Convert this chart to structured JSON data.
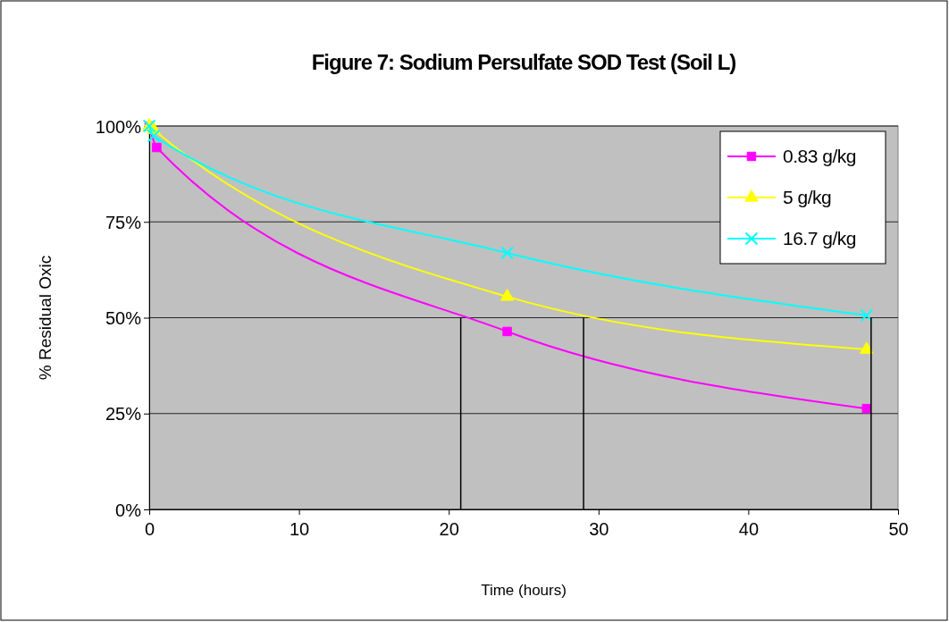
{
  "chart_data": {
    "type": "line",
    "title": "Figure 7: Sodium Persulfate SOD Test (Soil L)",
    "xlabel": "Time (hours)",
    "ylabel": "% Residual Oxic",
    "xlim": [
      0,
      50
    ],
    "xticks": [
      0,
      10,
      20,
      30,
      40,
      50
    ],
    "ylim": [
      0,
      100
    ],
    "yticks": [
      {
        "value": 0,
        "label": "0%"
      },
      {
        "value": 25,
        "label": "25%"
      },
      {
        "value": 50,
        "label": "50%"
      },
      {
        "value": 75,
        "label": "75%"
      },
      {
        "value": 100,
        "label": "100%"
      }
    ],
    "grid": "y",
    "legend": "top right",
    "series": [
      {
        "name": "0.83 g/kg",
        "color": "#ff00ff",
        "marker": "square",
        "x": [
          0,
          0.5,
          23.9,
          47.9
        ],
        "values": [
          100,
          94.4,
          46.4,
          26.3
        ]
      },
      {
        "name": "5 g/kg",
        "color": "#ffff00",
        "marker": "triangle",
        "x": [
          0,
          0.3,
          23.9,
          47.9
        ],
        "values": [
          100,
          99,
          55.5,
          41.7
        ]
      },
      {
        "name": "16.7 g/kg",
        "color": "#00ffff",
        "marker": "cross",
        "x": [
          0,
          0.3,
          23.9,
          47.9
        ],
        "values": [
          100,
          97.4,
          66.9,
          50.6
        ]
      },
      {
        "color": "#000000",
        "marker": "none",
        "x": [
          20.8,
          20.8
        ],
        "values": [
          0,
          50
        ]
      },
      {
        "color": "#000000",
        "marker": "none",
        "x": [
          29,
          29
        ],
        "values": [
          0,
          50
        ]
      },
      {
        "color": "#000000",
        "marker": "none",
        "x": [
          48.2,
          48.2
        ],
        "values": [
          0,
          50
        ]
      }
    ]
  }
}
